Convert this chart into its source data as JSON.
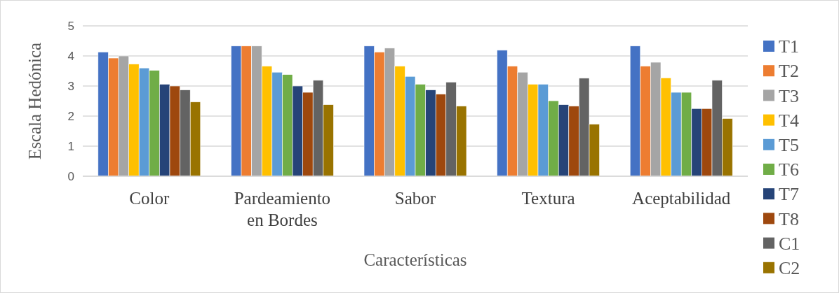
{
  "chart_data": {
    "type": "bar",
    "xlabel": "Características",
    "ylabel": "Escala Hedónica",
    "categories": [
      "Color",
      "Pardeamiento en Bordes",
      "Sabor",
      "Textura",
      "Aceptabilidad"
    ],
    "series": [
      {
        "name": "T1",
        "color": "#4472c4",
        "values": [
          4.13,
          4.33,
          4.33,
          4.19,
          4.33
        ]
      },
      {
        "name": "T2",
        "color": "#ed7d31",
        "values": [
          3.93,
          4.33,
          4.13,
          3.66,
          3.66
        ]
      },
      {
        "name": "T3",
        "color": "#a5a5a5",
        "values": [
          4.0,
          4.33,
          4.26,
          3.46,
          3.79
        ]
      },
      {
        "name": "T4",
        "color": "#ffc000",
        "values": [
          3.73,
          3.66,
          3.66,
          3.06,
          3.27
        ]
      },
      {
        "name": "T5",
        "color": "#5b9bd5",
        "values": [
          3.6,
          3.46,
          3.32,
          3.06,
          2.79
        ]
      },
      {
        "name": "T6",
        "color": "#70ad47",
        "values": [
          3.52,
          3.38,
          3.06,
          2.51,
          2.79
        ]
      },
      {
        "name": "T7",
        "color": "#264478",
        "values": [
          3.06,
          3.0,
          2.87,
          2.38,
          2.25
        ]
      },
      {
        "name": "T8",
        "color": "#9e480e",
        "values": [
          3.0,
          2.79,
          2.73,
          2.33,
          2.25
        ]
      },
      {
        "name": "C1",
        "color": "#636363",
        "values": [
          2.87,
          3.19,
          3.13,
          3.26,
          3.19
        ]
      },
      {
        "name": "C2",
        "color": "#997300",
        "values": [
          2.47,
          2.38,
          2.33,
          1.73,
          1.92
        ]
      }
    ],
    "ylim": [
      0,
      5
    ],
    "yticks": [
      0,
      1,
      2,
      3,
      4,
      5
    ],
    "grid": "y",
    "legend": "right"
  }
}
